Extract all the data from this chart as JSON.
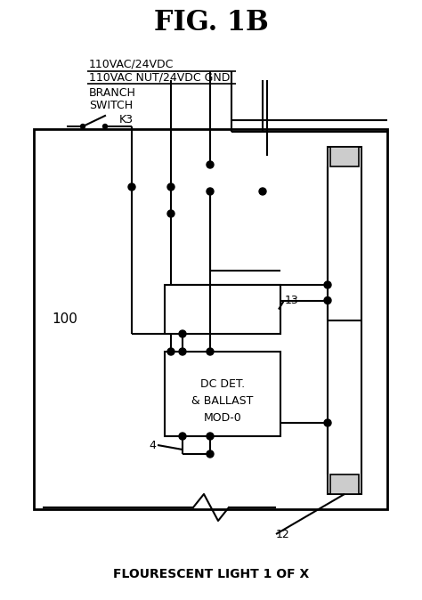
{
  "title": "FIG. 1B",
  "bg_color": "#ffffff",
  "line_color": "#000000",
  "label_100": "100",
  "label_13": "13",
  "label_4": "4",
  "label_12": "12",
  "label_K3": "K3",
  "label_line1": "110VAC/24VDC",
  "label_line2": "110VAC NUT/24VDC GND",
  "label_branch1": "BRANCH",
  "label_branch2": "SWITCH",
  "label_ballast1": "DC DET.",
  "label_ballast2": "& BALLAST",
  "label_ballast3": "MOD-0",
  "label_bottom": "FLOURESCENT LIGHT 1 OF X",
  "title_fontsize": 22,
  "body_fontsize": 9
}
